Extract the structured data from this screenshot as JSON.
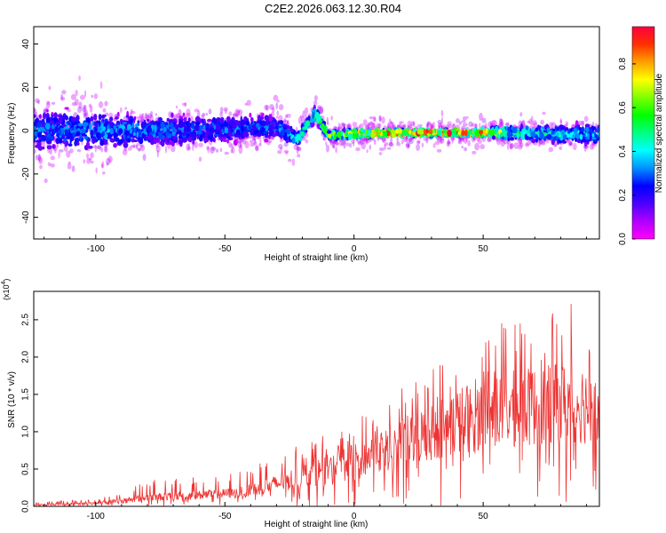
{
  "figure_title": "C2E2.2026.063.12.30.R04",
  "chart_data": [
    {
      "type": "heatmap",
      "title": "C2E2.2026.063.12.30.R04",
      "xlabel": "Height of straight line (km)",
      "ylabel": "Frequency (Hz)",
      "xlim": [
        -124,
        95
      ],
      "ylim": [
        -50,
        48
      ],
      "x_ticks": [
        -100,
        -50,
        0,
        50
      ],
      "y_ticks": [
        -40,
        -20,
        0,
        20,
        40
      ],
      "colorbar": {
        "label": "Normalized spectral amplitude",
        "range": [
          0,
          0.97
        ],
        "ticks": [
          0.0,
          0.2,
          0.4,
          0.6,
          0.8
        ],
        "colormap": [
          "#ff00ff",
          "#b000ff",
          "#4a00ff",
          "#0000ff",
          "#0090ff",
          "#00ffff",
          "#00ff80",
          "#00ff00",
          "#80ff00",
          "#ffff00",
          "#ffa000",
          "#ff3000",
          "#ff0040"
        ]
      },
      "ridge": [
        {
          "x": -120,
          "freq": 0,
          "amp": 0.3,
          "spread": 6
        },
        {
          "x": -100,
          "freq": 0,
          "amp": 0.35,
          "spread": 5
        },
        {
          "x": -60,
          "freq": 0,
          "amp": 0.3,
          "spread": 4
        },
        {
          "x": -30,
          "freq": 2,
          "amp": 0.3,
          "spread": 3
        },
        {
          "x": -22,
          "freq": -4,
          "amp": 0.45,
          "spread": 2
        },
        {
          "x": -15,
          "freq": 8,
          "amp": 0.5,
          "spread": 2
        },
        {
          "x": -10,
          "freq": -2,
          "amp": 0.6,
          "spread": 1.5
        },
        {
          "x": 10,
          "freq": -1,
          "amp": 0.85,
          "spread": 1
        },
        {
          "x": 50,
          "freq": -1,
          "amp": 0.9,
          "spread": 1
        },
        {
          "x": 60,
          "freq": -1,
          "amp": 0.5,
          "spread": 2
        },
        {
          "x": 95,
          "freq": -2,
          "amp": 0.35,
          "spread": 3
        }
      ]
    },
    {
      "type": "line",
      "xlabel": "Height of straight line (km)",
      "ylabel": "SNR (10 * v/v)",
      "y_multiplier": "(x10",
      "y_multiplier_exp": "4",
      "xlim": [
        -124,
        95
      ],
      "ylim": [
        0,
        2.88
      ],
      "x_ticks": [
        -100,
        -50,
        0,
        50
      ],
      "y_ticks": [
        0.0,
        0.5,
        1.0,
        1.5,
        2.0,
        2.5
      ],
      "color": "#ee3333",
      "envelope": [
        {
          "x": -124,
          "base": 0.02,
          "peak": 0.06
        },
        {
          "x": -100,
          "base": 0.04,
          "peak": 0.1
        },
        {
          "x": -90,
          "base": 0.08,
          "peak": 0.2
        },
        {
          "x": -80,
          "base": 0.12,
          "peak": 0.35
        },
        {
          "x": -60,
          "base": 0.15,
          "peak": 0.4
        },
        {
          "x": -45,
          "base": 0.18,
          "peak": 0.45
        },
        {
          "x": -30,
          "base": 0.3,
          "peak": 0.7
        },
        {
          "x": -15,
          "base": 0.45,
          "peak": 0.9
        },
        {
          "x": 0,
          "base": 0.6,
          "peak": 1.15
        },
        {
          "x": 15,
          "base": 0.8,
          "peak": 1.5
        },
        {
          "x": 30,
          "base": 1.0,
          "peak": 1.9
        },
        {
          "x": 45,
          "base": 1.2,
          "peak": 2.1
        },
        {
          "x": 60,
          "base": 1.3,
          "peak": 2.55
        },
        {
          "x": 75,
          "base": 1.35,
          "peak": 2.6
        },
        {
          "x": 87,
          "base": 1.4,
          "peak": 2.85
        },
        {
          "x": 95,
          "base": 1.3,
          "peak": 1.9
        }
      ]
    }
  ]
}
